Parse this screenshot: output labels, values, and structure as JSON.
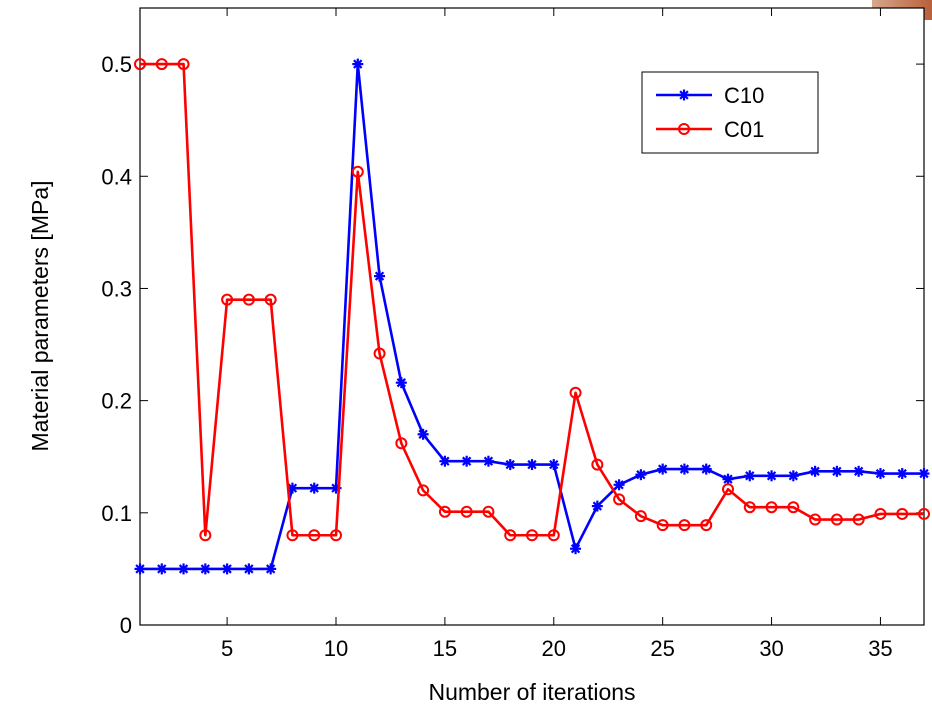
{
  "chart_data": {
    "type": "line",
    "title": "",
    "xlabel": "Number of iterations",
    "ylabel": "Material parameters [MPa]",
    "xlim": [
      1,
      37
    ],
    "ylim": [
      0,
      0.55
    ],
    "x_ticks": [
      5,
      10,
      15,
      20,
      25,
      30,
      35
    ],
    "y_ticks": [
      0,
      0.1,
      0.2,
      0.3,
      0.4,
      0.5
    ],
    "y_tick_labels": [
      "0",
      "0.1",
      "0.2",
      "0.3",
      "0.4",
      "0.5"
    ],
    "grid": false,
    "legend_position": "top-right",
    "x": [
      1,
      2,
      3,
      4,
      5,
      6,
      7,
      8,
      9,
      10,
      11,
      12,
      13,
      14,
      15,
      16,
      17,
      18,
      19,
      20,
      21,
      22,
      23,
      24,
      25,
      26,
      27,
      28,
      29,
      30,
      31,
      32,
      33,
      34,
      35,
      36,
      37
    ],
    "series": [
      {
        "name": "C10",
        "color": "#0000ff",
        "marker": "asterisk",
        "values": [
          0.05,
          0.05,
          0.05,
          0.05,
          0.05,
          0.05,
          0.05,
          0.122,
          0.122,
          0.122,
          0.5,
          0.311,
          0.216,
          0.17,
          0.146,
          0.146,
          0.146,
          0.143,
          0.143,
          0.143,
          0.068,
          0.106,
          0.125,
          0.134,
          0.139,
          0.139,
          0.139,
          0.13,
          0.133,
          0.133,
          0.133,
          0.137,
          0.137,
          0.137,
          0.135,
          0.135,
          0.135
        ]
      },
      {
        "name": "C01",
        "color": "#ff0000",
        "marker": "circle",
        "values": [
          0.5,
          0.5,
          0.5,
          0.08,
          0.29,
          0.29,
          0.29,
          0.08,
          0.08,
          0.08,
          0.404,
          0.242,
          0.162,
          0.12,
          0.101,
          0.101,
          0.101,
          0.08,
          0.08,
          0.08,
          0.207,
          0.143,
          0.112,
          0.097,
          0.089,
          0.089,
          0.089,
          0.121,
          0.105,
          0.105,
          0.105,
          0.094,
          0.094,
          0.094,
          0.099,
          0.099,
          0.099
        ]
      }
    ]
  }
}
